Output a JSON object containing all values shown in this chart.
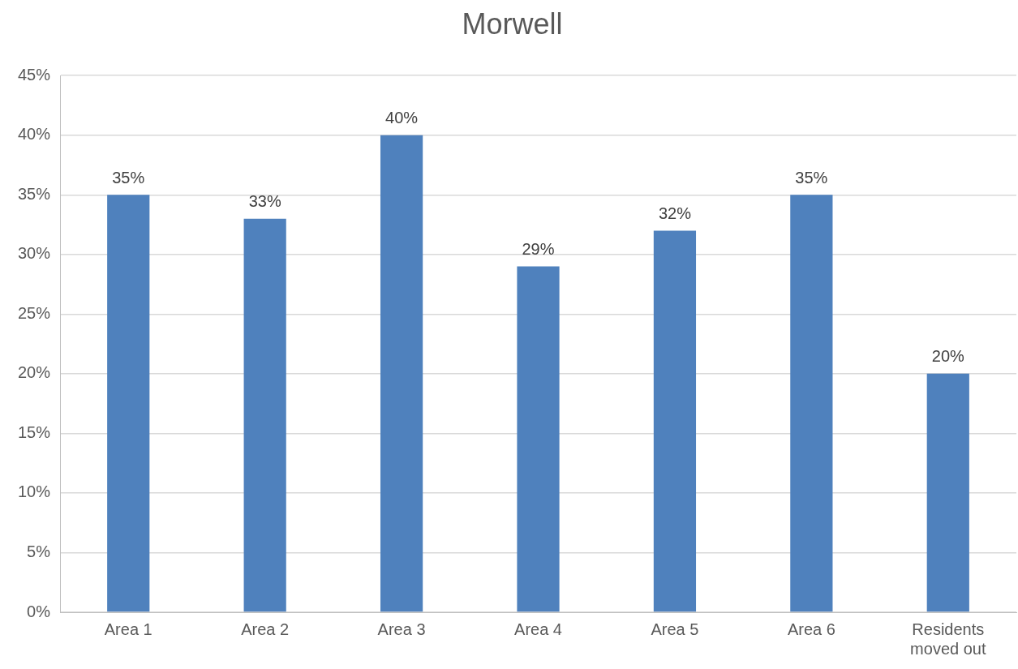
{
  "chart_data": {
    "type": "bar",
    "title": "Morwell",
    "categories": [
      "Area 1",
      "Area 2",
      "Area 3",
      "Area 4",
      "Area 5",
      "Area 6",
      "Residents moved out"
    ],
    "values": [
      35,
      33,
      40,
      29,
      32,
      35,
      20
    ],
    "value_labels": [
      "35%",
      "33%",
      "40%",
      "29%",
      "32%",
      "35%",
      "20%"
    ],
    "color": "#4f81bd",
    "ylim": [
      0,
      45
    ],
    "yticks": [
      {
        "value": 0,
        "label": "0%"
      },
      {
        "value": 5,
        "label": "5%"
      },
      {
        "value": 10,
        "label": "10%"
      },
      {
        "value": 15,
        "label": "15%"
      },
      {
        "value": 20,
        "label": "20%"
      },
      {
        "value": 25,
        "label": "25%"
      },
      {
        "value": 30,
        "label": "30%"
      },
      {
        "value": 35,
        "label": "35%"
      },
      {
        "value": 40,
        "label": "40%"
      },
      {
        "value": 45,
        "label": "45%"
      }
    ],
    "grid": "y",
    "legend": false
  }
}
